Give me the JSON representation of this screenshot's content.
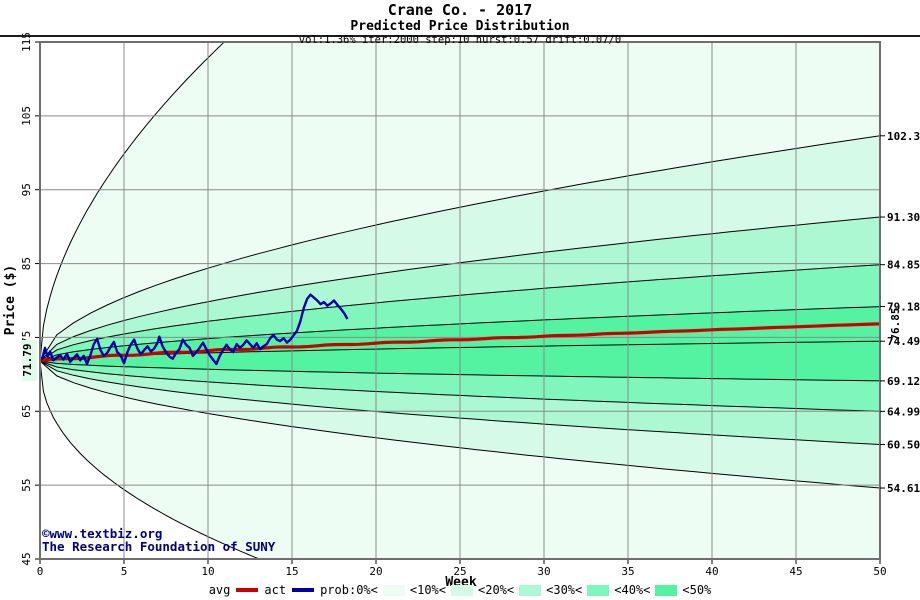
{
  "header": {
    "title": "Crane Co. - 2017",
    "subtitle": "Predicted Price Distribution",
    "params": "vol:1.36% iter:2000 step:10 hurst:0.57 drift:0.07/0"
  },
  "watermark": {
    "line1": "©www.textbiz.org",
    "line2": "The Research Foundation of SUNY"
  },
  "axes": {
    "y_title": "Price ($)",
    "x_title": "Week",
    "y_ticks": [
      115,
      105,
      95,
      85,
      75,
      65,
      55,
      45
    ],
    "x_ticks": [
      0,
      5,
      10,
      15,
      20,
      25,
      30,
      35,
      40,
      45,
      50
    ],
    "start_label": "71.79",
    "avg_end_label": "76.85"
  },
  "legend": {
    "avg": "avg",
    "act": "act",
    "prob": "prob:0%<",
    "b10": "<10%<",
    "b20": "<20%<",
    "b30": "<30%<",
    "b40": "<40%<",
    "b50": "<50%"
  },
  "colors": {
    "band_10": "#EEFDF4",
    "band_20": "#D6FAE8",
    "band_30": "#ABF8D3",
    "band_40": "#7FF6BB",
    "band_50": "#53F3A2",
    "avg": "#CC0000",
    "act": "#0000AA",
    "navy": "#000080",
    "grid": "#8A8A8A",
    "frame": "#6E6E6E",
    "curve": "#000000",
    "label_bg": "#E2FBEC"
  },
  "chart_data": {
    "type": "area",
    "subtype": "probability-fan-with-lines",
    "title": "Crane Co. - 2017",
    "subtitle": "Predicted Price Distribution",
    "model_params": {
      "vol_pct": 1.36,
      "iterations": 2000,
      "step": 10,
      "hurst": 0.57,
      "drift": "0.07/0"
    },
    "xlabel": "Week",
    "ylabel": "Price ($)",
    "xlim": [
      0,
      50
    ],
    "ylim": [
      45,
      115
    ],
    "grid": true,
    "legend_position": "bottom",
    "start_price": 71.79,
    "bands": {
      "start": 71.79,
      "exponent": 0.55,
      "finals": [
        102.3,
        91.3,
        84.85,
        79.18,
        74.49,
        69.12,
        64.99,
        60.5,
        54.61
      ],
      "final_labels": [
        "102.3",
        "91.30",
        "84.85",
        "79.18",
        "74.49",
        "69.12",
        "64.99",
        "60.50",
        "54.61"
      ],
      "shade_order": [
        "band_20",
        "band_30",
        "band_40",
        "band_50",
        "band_50",
        "band_40",
        "band_30",
        "band_20"
      ]
    },
    "envelope": {
      "top": {
        "scale": 43.5,
        "exit_week": 11.1,
        "exponent": 0.55
      },
      "bottom": {
        "scale": 27.2,
        "exit_week": 13.5,
        "exponent": 0.45
      }
    },
    "avg_series": {
      "name": "avg",
      "start": 71.79,
      "end": 76.85,
      "exponent": 0.8
    },
    "act_series": {
      "name": "act",
      "points": [
        [
          0,
          71.8
        ],
        [
          0.15,
          72.3
        ],
        [
          0.3,
          73.6
        ],
        [
          0.45,
          72.4
        ],
        [
          0.6,
          73.1
        ],
        [
          0.8,
          71.9
        ],
        [
          1.0,
          72.3
        ],
        [
          1.2,
          72.6
        ],
        [
          1.4,
          72.0
        ],
        [
          1.6,
          72.8
        ],
        [
          1.8,
          71.7
        ],
        [
          2.0,
          72.2
        ],
        [
          2.2,
          72.7
        ],
        [
          2.4,
          71.9
        ],
        [
          2.6,
          72.5
        ],
        [
          2.8,
          71.4
        ],
        [
          3.0,
          72.6
        ],
        [
          3.2,
          74.1
        ],
        [
          3.4,
          74.8
        ],
        [
          3.6,
          73.3
        ],
        [
          3.8,
          72.5
        ],
        [
          4.0,
          72.9
        ],
        [
          4.2,
          73.7
        ],
        [
          4.4,
          74.4
        ],
        [
          4.6,
          73.0
        ],
        [
          4.8,
          72.6
        ],
        [
          5.0,
          71.5
        ],
        [
          5.2,
          73.0
        ],
        [
          5.4,
          74.0
        ],
        [
          5.6,
          74.7
        ],
        [
          5.8,
          73.5
        ],
        [
          6.0,
          72.7
        ],
        [
          6.2,
          73.3
        ],
        [
          6.4,
          73.8
        ],
        [
          6.6,
          73.1
        ],
        [
          6.8,
          73.5
        ],
        [
          7.0,
          74.3
        ],
        [
          7.1,
          75.1
        ],
        [
          7.3,
          73.8
        ],
        [
          7.5,
          73.0
        ],
        [
          7.7,
          72.4
        ],
        [
          7.9,
          72.1
        ],
        [
          8.1,
          72.9
        ],
        [
          8.3,
          73.4
        ],
        [
          8.5,
          74.7
        ],
        [
          8.7,
          74.0
        ],
        [
          8.9,
          73.6
        ],
        [
          9.1,
          72.5
        ],
        [
          9.3,
          73.0
        ],
        [
          9.5,
          73.6
        ],
        [
          9.7,
          74.3
        ],
        [
          9.9,
          73.4
        ],
        [
          10.1,
          72.6
        ],
        [
          10.3,
          72.0
        ],
        [
          10.5,
          71.4
        ],
        [
          10.7,
          72.5
        ],
        [
          10.9,
          73.3
        ],
        [
          11.1,
          74.0
        ],
        [
          11.3,
          73.4
        ],
        [
          11.5,
          73.0
        ],
        [
          11.7,
          74.1
        ],
        [
          11.9,
          73.6
        ],
        [
          12.1,
          74.0
        ],
        [
          12.3,
          74.6
        ],
        [
          12.5,
          74.1
        ],
        [
          12.7,
          73.6
        ],
        [
          12.9,
          74.2
        ],
        [
          13.1,
          73.4
        ],
        [
          13.3,
          73.8
        ],
        [
          13.5,
          74.1
        ],
        [
          13.7,
          74.9
        ],
        [
          13.9,
          75.3
        ],
        [
          14.1,
          74.7
        ],
        [
          14.3,
          74.5
        ],
        [
          14.5,
          74.9
        ],
        [
          14.7,
          74.3
        ],
        [
          14.9,
          74.7
        ],
        [
          15.1,
          75.3
        ],
        [
          15.3,
          75.9
        ],
        [
          15.5,
          77.2
        ],
        [
          15.7,
          79.0
        ],
        [
          15.9,
          80.2
        ],
        [
          16.1,
          80.8
        ],
        [
          16.3,
          80.4
        ],
        [
          16.5,
          80.0
        ],
        [
          16.7,
          79.5
        ],
        [
          16.9,
          79.8
        ],
        [
          17.1,
          79.3
        ],
        [
          17.3,
          79.6
        ],
        [
          17.5,
          80.0
        ],
        [
          17.7,
          79.4
        ],
        [
          17.9,
          78.9
        ],
        [
          18.1,
          78.3
        ],
        [
          18.3,
          77.5
        ]
      ]
    }
  }
}
